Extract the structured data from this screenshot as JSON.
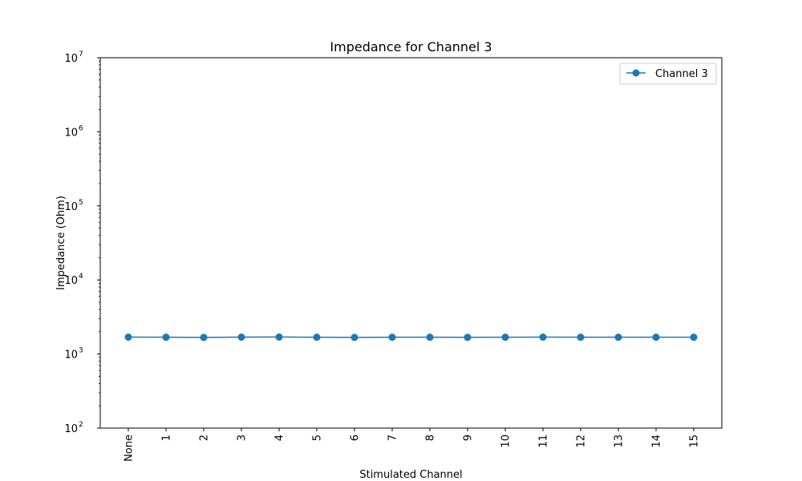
{
  "chart_data": {
    "type": "line",
    "title": "Impedance for Channel 3",
    "xlabel": "Stimulated Channel",
    "ylabel": "Impedance (Ohm)",
    "categories": [
      "None",
      "1",
      "2",
      "3",
      "4",
      "5",
      "6",
      "7",
      "8",
      "9",
      "10",
      "11",
      "12",
      "13",
      "14",
      "15"
    ],
    "series": [
      {
        "name": "Channel 3",
        "color": "#1f77b4",
        "marker": "circle",
        "values": [
          1690,
          1685,
          1675,
          1690,
          1695,
          1685,
          1675,
          1685,
          1685,
          1680,
          1685,
          1690,
          1685,
          1685,
          1685,
          1685
        ]
      }
    ],
    "y_scale": "log",
    "ylim": [
      100,
      10000000
    ],
    "y_ticks": [
      {
        "base": "10",
        "exp": "2",
        "value": 100
      },
      {
        "base": "10",
        "exp": "3",
        "value": 1000
      },
      {
        "base": "10",
        "exp": "4",
        "value": 10000
      },
      {
        "base": "10",
        "exp": "5",
        "value": 100000
      },
      {
        "base": "10",
        "exp": "6",
        "value": 1000000
      },
      {
        "base": "10",
        "exp": "7",
        "value": 10000000
      }
    ],
    "x_tick_rotation": "vertical",
    "grid": false,
    "legend_position": "top-right"
  }
}
